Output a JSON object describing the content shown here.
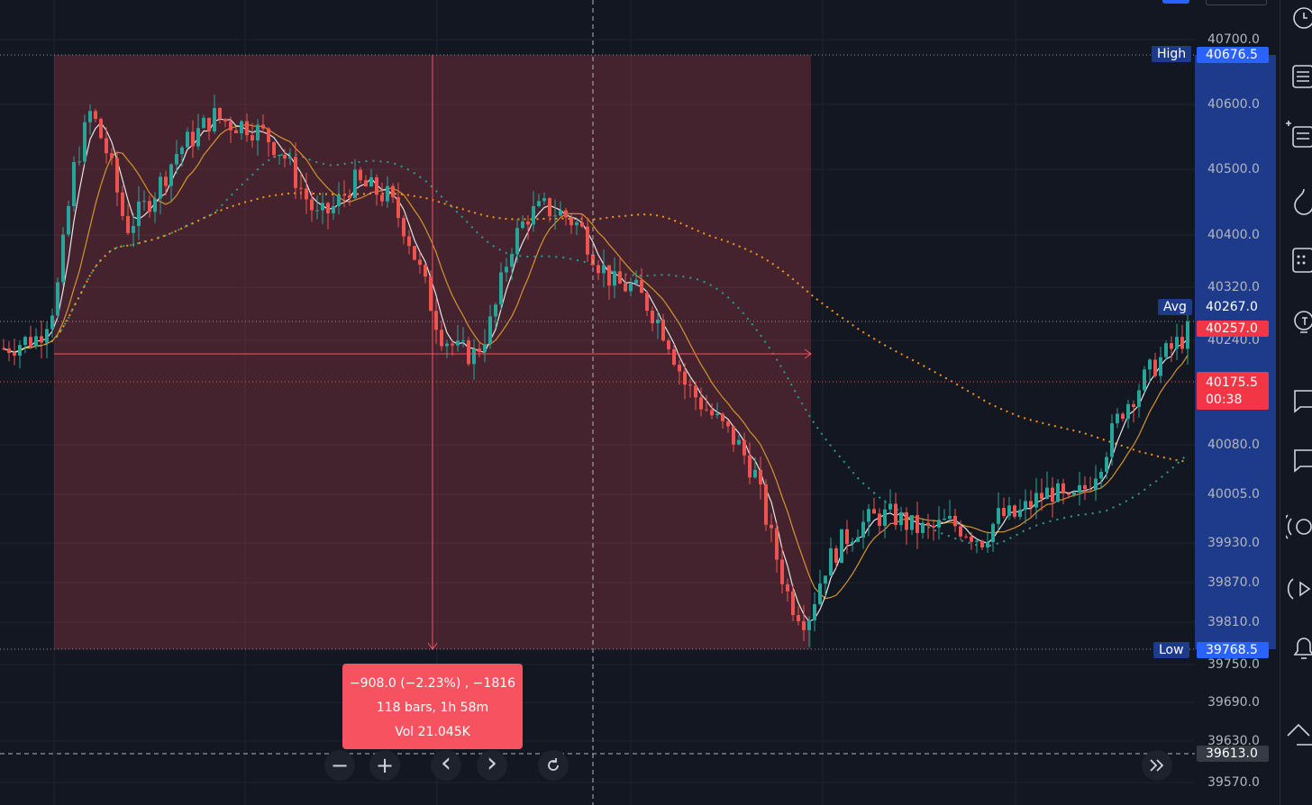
{
  "colors": {
    "background": "#131722",
    "up": "#26a69a",
    "down": "#ef5350",
    "measure_fill": "#f7525f",
    "axis_highlight": "#1e3a8a",
    "label_blue": "#2962ff",
    "label_red": "#f23645",
    "ma_fast": "#e6e6e6",
    "ma_mid": "#d4952c",
    "ma_long_orange": "#f7931a",
    "ma_long_teal": "#2a9d8f"
  },
  "price_axis": {
    "ticks": [
      "40700.0",
      "40600.0",
      "40500.0",
      "40400.0",
      "40320.0",
      "40240.0",
      "40080.0",
      "40005.0",
      "39930.0",
      "39870.0",
      "39810.0",
      "39750.0",
      "39690.0",
      "39630.0",
      "39570.0"
    ],
    "tick_values": [
      40700,
      40600,
      40500,
      40400,
      40320,
      40240,
      40080,
      40005,
      39930,
      39870,
      39810,
      39750,
      39690,
      39630,
      39570
    ],
    "high_label": "High",
    "high_value": "40676.5",
    "avg_label": "Avg",
    "avg_value": "40267.0",
    "last_price": "40257.0",
    "current_price": "40175.5",
    "countdown": "00:38",
    "low_label": "Low",
    "low_value": "39768.5",
    "crosshair_price": "39613.0"
  },
  "measurement": {
    "change": "−908.0 (−2.23%) , −1816",
    "bars": "118 bars, 1h 58m",
    "volume": "Vol 21.045K"
  },
  "navigation": {
    "zoom_out": "−",
    "zoom_in": "+",
    "scroll_left": "‹",
    "scroll_right": "›",
    "reset": "reset-icon",
    "scroll_to_realtime": "double-chevron-right-icon"
  },
  "toolbar_icons": [
    "alarm-icon",
    "watchlist-icon",
    "details-icon",
    "hotlist-icon",
    "calendar-icon",
    "ideas-icon",
    "chat-icon",
    "chat-icon",
    "streams-icon",
    "playback-icon",
    "alerts-icon",
    "trend-icon"
  ],
  "chart_data": {
    "type": "candlestick",
    "closes": [
      40228,
      40237,
      40245,
      40302,
      40498,
      40590,
      40520,
      40410,
      40440,
      40480,
      40530,
      40553,
      40582,
      40571,
      40568,
      40552,
      40524,
      40472,
      40424,
      40444,
      40481,
      40470,
      40458,
      40410,
      40332,
      40252,
      40224,
      40218,
      40272,
      40381,
      40430,
      40441,
      40432,
      40413,
      40360,
      40324,
      40320,
      40290,
      40246,
      40174,
      40142,
      40112,
      40083,
      40037,
      39932,
      39843,
      39813,
      39893,
      39932,
      39957,
      39971,
      39972,
      39955,
      39948,
      39962,
      39952,
      39935,
      39972,
      39971,
      39995,
      40011,
      39987,
      40017,
      40067,
      40132,
      40169,
      40205,
      40230,
      40257
    ],
    "ylim": [
      39570,
      40700
    ],
    "moving_averages": [
      "fast",
      "mid",
      "long-orange",
      "long-teal"
    ]
  }
}
